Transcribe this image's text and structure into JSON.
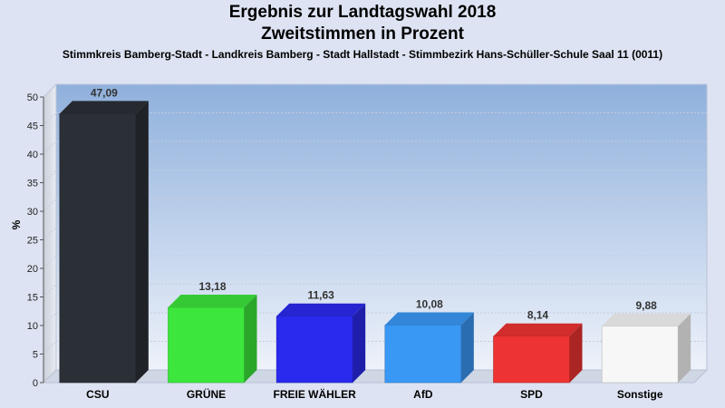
{
  "title": "Ergebnis zur Landtagswahl 2018",
  "subtitle": "Zweitstimmen in Prozent",
  "caption": "Stimmkreis Bamberg-Stadt - Landkreis Bamberg - Stadt Hallstadt - Stimmbezirk Hans-Schüller-Schule Saal 11 (0011)",
  "chart_data": {
    "type": "bar",
    "categories": [
      "CSU",
      "GRÜNE",
      "FREIE WÄHLER",
      "AfD",
      "SPD",
      "Sonstige"
    ],
    "values": [
      47.09,
      13.18,
      11.63,
      10.08,
      8.14,
      9.88
    ],
    "value_labels": [
      "47,09",
      "13,18",
      "11,63",
      "10,08",
      "8,14",
      "9,88"
    ],
    "colors": [
      "#2b2f36",
      "#3ce63c",
      "#2a2aee",
      "#3a98f5",
      "#ee3333",
      "#f7f7f7"
    ],
    "ylabel": "%",
    "ylim": [
      0,
      50
    ],
    "yticks": [
      "0",
      "5",
      "10",
      "15",
      "20",
      "25",
      "30",
      "35",
      "40",
      "45",
      "50"
    ],
    "grid": true
  }
}
